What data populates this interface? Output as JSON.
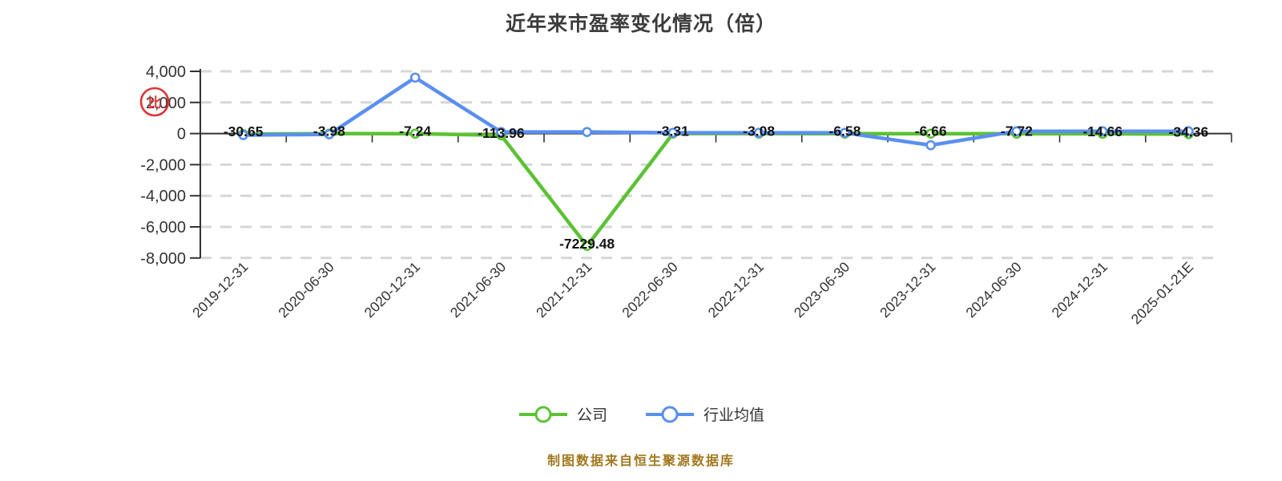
{
  "title": "近年来市盈率变化情况（倍）",
  "footer": {
    "text": "制图数据来自恒生聚源数据库",
    "color": "#A1781E"
  },
  "watermark": {
    "glyph": "比",
    "color": "#e03333"
  },
  "colors": {
    "company_line": "#5bc234",
    "industry_line": "#5a8ff0",
    "axis": "#333333",
    "grid": "#d6d6d6",
    "data_label": "#141414",
    "title_text": "#3c3c3c"
  },
  "chart_data": {
    "type": "line",
    "title": "近年来市盈率变化情况（倍）",
    "categories": [
      "2019-12-31",
      "2020-06-30",
      "2020-12-31",
      "2021-06-30",
      "2021-12-31",
      "2022-06-30",
      "2022-12-31",
      "2023-06-30",
      "2023-12-31",
      "2024-06-30",
      "2024-12-31",
      "2025-01-21E"
    ],
    "series": [
      {
        "name": "公司",
        "color": "#5bc234",
        "values": [
          -30.65,
          -3.98,
          -7.24,
          -113.96,
          -7229.48,
          -3.31,
          -3.08,
          -6.58,
          -6.66,
          -7.72,
          -14.66,
          -34.36
        ],
        "labels": [
          "-30.65",
          "-3.98",
          "-7.24",
          "-113.96",
          "-7229.48",
          "-3.31",
          "-3.08",
          "-6.58",
          "-6.66",
          "-7.72",
          "-14.66",
          "-34.36"
        ],
        "labeled": true
      },
      {
        "name": "行业均值",
        "color": "#5a8ff0",
        "values": [
          -100,
          -50,
          3600,
          100,
          100,
          50,
          50,
          50,
          -750,
          150,
          150,
          150
        ],
        "labeled": false,
        "estimated": true
      }
    ],
    "ylim": [
      -8000,
      4000
    ],
    "y_ticks": [
      4000,
      2000,
      0,
      -2000,
      -4000,
      -6000,
      -8000
    ],
    "y_tick_labels": [
      "4,000",
      "2,000",
      "0",
      "-2,000",
      "-4,000",
      "-6,000",
      "-8,000"
    ],
    "grid": "dashed horizontal",
    "legend_position": "bottom",
    "x_label_rotation": -45
  }
}
